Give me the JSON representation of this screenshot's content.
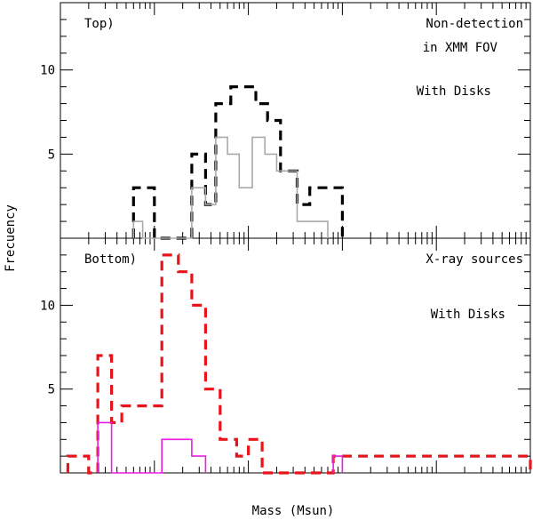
{
  "chart_data": {
    "type": "histogram",
    "xlabel": "Mass (Msun)",
    "ylabel": "Frecuency",
    "x_scale": "log",
    "xlim": [
      0.01,
      1000
    ],
    "panels": [
      {
        "name": "top",
        "panel_label": "Top)",
        "ylim": [
          0,
          14
        ],
        "yticks": [
          5,
          10
        ],
        "annotations": [
          "Non-detection",
          "in XMM FOV"
        ],
        "series": [
          {
            "name": "Non-detection in XMM FOV",
            "style": "dashed-thick",
            "color": "#000000",
            "bins": [
              [
                0.06,
                0.1,
                3
              ],
              [
                0.1,
                0.15,
                0
              ],
              [
                0.15,
                0.25,
                0
              ],
              [
                0.25,
                0.35,
                5
              ],
              [
                0.35,
                0.45,
                2
              ],
              [
                0.45,
                0.65,
                8
              ],
              [
                0.65,
                1.2,
                9
              ],
              [
                1.2,
                1.6,
                8
              ],
              [
                1.6,
                2.2,
                7
              ],
              [
                2.2,
                3.3,
                4
              ],
              [
                3.3,
                4.5,
                2
              ],
              [
                4.5,
                10,
                3
              ]
            ]
          },
          {
            "name": "With Disks",
            "style": "solid",
            "color": "#aaaaaa",
            "bins": [
              [
                0.06,
                0.075,
                1
              ],
              [
                0.075,
                0.25,
                0
              ],
              [
                0.25,
                0.35,
                3
              ],
              [
                0.35,
                0.45,
                2
              ],
              [
                0.45,
                0.6,
                6
              ],
              [
                0.6,
                0.8,
                5
              ],
              [
                0.8,
                1.1,
                3
              ],
              [
                1.1,
                1.5,
                6
              ],
              [
                1.5,
                2,
                5
              ],
              [
                2,
                2.5,
                4
              ],
              [
                2.5,
                3.3,
                4
              ],
              [
                3.3,
                5,
                1
              ],
              [
                5,
                7,
                1
              ]
            ]
          }
        ],
        "legend": [
          {
            "label": "With Disks",
            "color": "#aaaaaa"
          }
        ]
      },
      {
        "name": "bottom",
        "panel_label": "Bottom)",
        "ylim": [
          0,
          14
        ],
        "yticks": [
          5,
          10
        ],
        "series": [
          {
            "name": "X-ray sources",
            "style": "dashed-thick",
            "color": "#e8141b",
            "bins": [
              [
                0.012,
                0.02,
                1
              ],
              [
                0.02,
                0.025,
                0
              ],
              [
                0.025,
                0.035,
                7
              ],
              [
                0.035,
                0.045,
                3
              ],
              [
                0.045,
                0.06,
                4
              ],
              [
                0.06,
                0.12,
                4
              ],
              [
                0.12,
                0.18,
                13
              ],
              [
                0.18,
                0.25,
                12
              ],
              [
                0.25,
                0.35,
                10
              ],
              [
                0.35,
                0.5,
                5
              ],
              [
                0.5,
                0.75,
                2
              ],
              [
                0.75,
                1,
                1
              ],
              [
                1,
                1.4,
                2
              ],
              [
                1.4,
                8,
                0
              ],
              [
                8,
                10,
                1
              ],
              [
                10,
                1000,
                1
              ]
            ]
          },
          {
            "name": "With Disks",
            "style": "solid",
            "color": "#e81ee0",
            "bins": [
              [
                0.025,
                0.035,
                3
              ],
              [
                0.035,
                0.12,
                0
              ],
              [
                0.12,
                0.25,
                2
              ],
              [
                0.25,
                0.35,
                1
              ],
              [
                8,
                10,
                1
              ]
            ]
          }
        ],
        "legend": [
          {
            "label": "X-ray sources",
            "color": "#e8141b"
          },
          {
            "label": "With Disks",
            "color": "#e81ee0"
          }
        ]
      }
    ]
  }
}
